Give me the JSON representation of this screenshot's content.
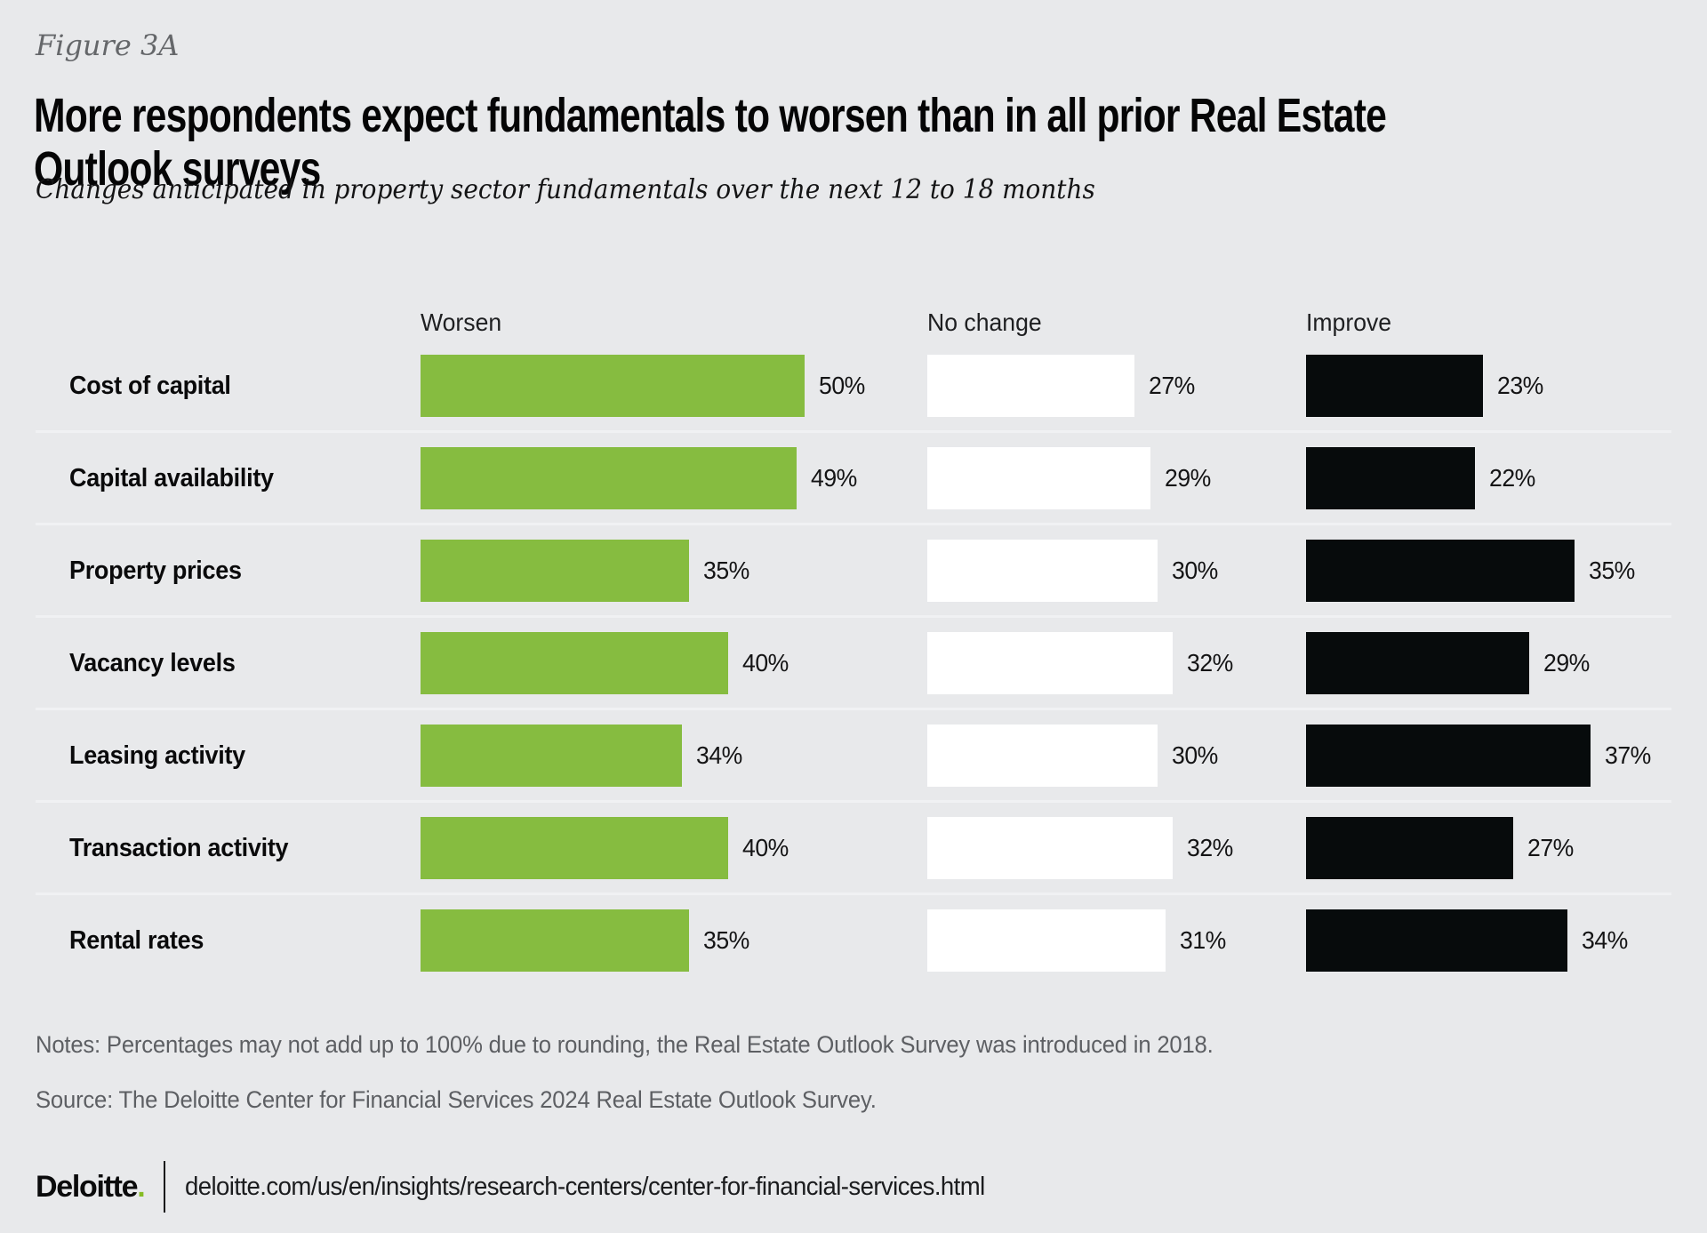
{
  "figure_label": "Figure 3A",
  "title": "More respondents expect fundamentals to worsen than in all prior Real Estate Outlook surveys",
  "title_lines": [
    "More respondents expect fundamentals to worsen than in all prior Real Estate",
    "Outlook surveys"
  ],
  "subtitle": "Changes anticipated in property sector fundamentals over the next 12 to 18 months",
  "chart_data": {
    "type": "bar",
    "orientation": "horizontal",
    "value_suffix": "%",
    "xlim": [
      0,
      50
    ],
    "grid": false,
    "legend_position": "column-headers",
    "columns": [
      "Worsen",
      "No change",
      "Improve"
    ],
    "categories": [
      "Cost of capital",
      "Capital availability",
      "Property prices",
      "Vacancy levels",
      "Leasing activity",
      "Transaction activity",
      "Rental rates"
    ],
    "series": [
      {
        "name": "Worsen",
        "color": "#86BC40",
        "values": [
          50,
          49,
          35,
          40,
          34,
          40,
          35
        ]
      },
      {
        "name": "No change",
        "color": "#FFFFFF",
        "values": [
          27,
          29,
          30,
          32,
          30,
          32,
          31
        ]
      },
      {
        "name": "Improve",
        "color": "#070B0C",
        "values": [
          23,
          22,
          35,
          29,
          37,
          27,
          34
        ]
      }
    ]
  },
  "notes": "Notes: Percentages may not add up to 100% due to rounding, the Real Estate Outlook Survey was introduced in 2018.",
  "source": "Source: The Deloitte Center for Financial Services 2024 Real Estate Outlook Survey.",
  "footer": {
    "brand": "Deloitte",
    "brand_dot": ".",
    "url": "deloitte.com/us/en/insights/research-centers/center-for-financial-services.html"
  },
  "colors": {
    "background": "#E8E9EB",
    "worsen_green": "#86BC40",
    "no_change_white": "#FFFFFF",
    "improve_black": "#070B0C",
    "divider": "#F0F1F3",
    "text_muted": "#5D5F63",
    "brand_green_dot": "#86BC25"
  }
}
